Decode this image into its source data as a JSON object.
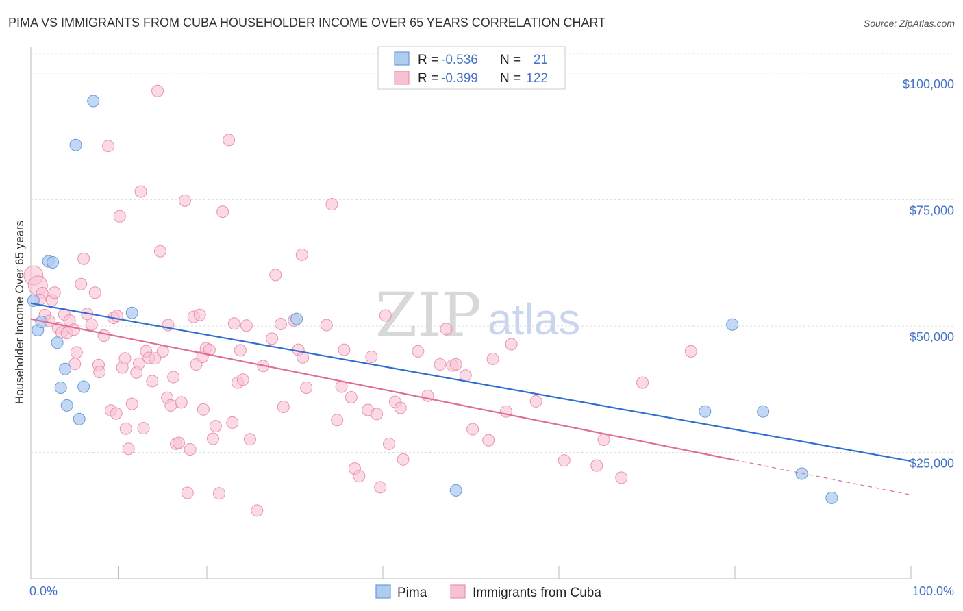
{
  "title": "PIMA VS IMMIGRANTS FROM CUBA HOUSEHOLDER INCOME OVER 65 YEARS CORRELATION CHART",
  "source": "Source: ZipAtlas.com",
  "watermark": {
    "zip": "ZIP",
    "atlas": "atlas"
  },
  "colors": {
    "pima_fill": "#aecbf0",
    "pima_stroke": "#6a9bd8",
    "pima_line": "#2f6fd0",
    "cuba_fill": "#f8c1d3",
    "cuba_stroke": "#e892b0",
    "cuba_line": "#e06d97",
    "grid": "#dddddd",
    "tick_label": "#4472c4"
  },
  "legend": {
    "rows": [
      {
        "r_label": "R =",
        "r_value": "-0.536",
        "n_label": "N =",
        "n_value": "21"
      },
      {
        "r_label": "R =",
        "r_value": "-0.399",
        "n_label": "N =",
        "n_value": "122"
      }
    ]
  },
  "bottom_legend": {
    "pima": "Pima",
    "cuba": "Immigrants from Cuba"
  },
  "chart_data": {
    "type": "scatter",
    "xlabel": "",
    "ylabel": "Householder Income Over 65 years",
    "xlim": [
      0,
      100
    ],
    "ylim": [
      0,
      105000
    ],
    "x_tick_labels": [
      "0.0%",
      "100.0%"
    ],
    "y_ticks": [
      25000,
      50000,
      75000,
      100000
    ],
    "y_tick_labels": [
      "$25,000",
      "$50,000",
      "$75,000",
      "$100,000"
    ],
    "grid": true,
    "legend_position": "top-center",
    "series": [
      {
        "name": "Pima",
        "r": -0.536,
        "n": 21,
        "trend": {
          "x": [
            0,
            100
          ],
          "y": [
            54500,
            23300
          ]
        },
        "points": [
          [
            0.3,
            55000
          ],
          [
            0.8,
            49200
          ],
          [
            1.2,
            50800
          ],
          [
            2.0,
            62800
          ],
          [
            2.5,
            62600
          ],
          [
            3.0,
            46700
          ],
          [
            3.4,
            37800
          ],
          [
            3.9,
            41500
          ],
          [
            4.1,
            34300
          ],
          [
            5.1,
            85800
          ],
          [
            5.5,
            31600
          ],
          [
            6.0,
            38000
          ],
          [
            7.1,
            94500
          ],
          [
            11.5,
            52600
          ],
          [
            30.2,
            51400
          ],
          [
            48.3,
            17500
          ],
          [
            79.7,
            50300
          ],
          [
            76.6,
            33100
          ],
          [
            83.2,
            33100
          ],
          [
            87.6,
            20800
          ],
          [
            91.0,
            16000
          ]
        ]
      },
      {
        "name": "Immigrants from Cuba",
        "r": -0.399,
        "n": 122,
        "trend": {
          "x": [
            0,
            80
          ],
          "y": [
            51400,
            23500
          ]
        },
        "trend_dashed": {
          "x": [
            80,
            100
          ],
          "y": [
            23500,
            16600
          ]
        },
        "points": [
          [
            0.3,
            60000
          ],
          [
            0.8,
            58000
          ],
          [
            1.3,
            56500
          ],
          [
            1.0,
            55200
          ],
          [
            1.6,
            52200
          ],
          [
            2.1,
            51000
          ],
          [
            2.4,
            55100
          ],
          [
            2.7,
            56600
          ],
          [
            3.1,
            49600
          ],
          [
            3.5,
            48700
          ],
          [
            3.8,
            52300
          ],
          [
            4.1,
            48600
          ],
          [
            4.4,
            51100
          ],
          [
            4.9,
            49300
          ],
          [
            5.2,
            44800
          ],
          [
            5.0,
            42500
          ],
          [
            5.7,
            58300
          ],
          [
            6.0,
            63300
          ],
          [
            6.4,
            52400
          ],
          [
            6.9,
            50300
          ],
          [
            7.3,
            56600
          ],
          [
            7.7,
            42300
          ],
          [
            7.8,
            40900
          ],
          [
            8.3,
            48100
          ],
          [
            8.8,
            85600
          ],
          [
            9.1,
            33300
          ],
          [
            9.4,
            51600
          ],
          [
            9.7,
            32700
          ],
          [
            10.1,
            71700
          ],
          [
            10.4,
            41800
          ],
          [
            10.7,
            43600
          ],
          [
            10.8,
            29700
          ],
          [
            11.1,
            25700
          ],
          [
            11.5,
            34600
          ],
          [
            12.0,
            40800
          ],
          [
            12.3,
            42600
          ],
          [
            12.5,
            76600
          ],
          [
            12.8,
            29800
          ],
          [
            13.1,
            45000
          ],
          [
            13.4,
            43700
          ],
          [
            13.8,
            39100
          ],
          [
            14.1,
            43600
          ],
          [
            14.4,
            96500
          ],
          [
            14.7,
            64800
          ],
          [
            15.0,
            45000
          ],
          [
            15.5,
            35800
          ],
          [
            15.6,
            50200
          ],
          [
            15.9,
            34300
          ],
          [
            16.2,
            39900
          ],
          [
            16.5,
            26700
          ],
          [
            16.8,
            26900
          ],
          [
            17.1,
            34900
          ],
          [
            17.5,
            74800
          ],
          [
            17.8,
            17000
          ],
          [
            18.1,
            25600
          ],
          [
            18.5,
            51800
          ],
          [
            18.8,
            42400
          ],
          [
            19.2,
            52200
          ],
          [
            19.5,
            43900
          ],
          [
            19.6,
            33500
          ],
          [
            19.9,
            45600
          ],
          [
            20.3,
            45300
          ],
          [
            20.7,
            27700
          ],
          [
            21.0,
            30200
          ],
          [
            21.4,
            16900
          ],
          [
            21.8,
            72600
          ],
          [
            22.5,
            86800
          ],
          [
            22.9,
            30900
          ],
          [
            23.1,
            50500
          ],
          [
            23.5,
            38800
          ],
          [
            23.8,
            45200
          ],
          [
            24.1,
            39400
          ],
          [
            24.5,
            50100
          ],
          [
            24.9,
            27600
          ],
          [
            25.7,
            13500
          ],
          [
            26.4,
            42100
          ],
          [
            27.4,
            47500
          ],
          [
            27.8,
            60100
          ],
          [
            28.4,
            50400
          ],
          [
            28.7,
            34000
          ],
          [
            29.9,
            51100
          ],
          [
            30.4,
            45300
          ],
          [
            30.8,
            64100
          ],
          [
            30.9,
            43800
          ],
          [
            31.3,
            37800
          ],
          [
            33.6,
            50200
          ],
          [
            34.2,
            74100
          ],
          [
            34.8,
            31400
          ],
          [
            35.3,
            38000
          ],
          [
            35.6,
            45300
          ],
          [
            36.4,
            35900
          ],
          [
            36.8,
            21800
          ],
          [
            37.3,
            20300
          ],
          [
            38.3,
            33400
          ],
          [
            38.7,
            43900
          ],
          [
            39.3,
            32600
          ],
          [
            39.7,
            18100
          ],
          [
            40.3,
            52100
          ],
          [
            40.7,
            26700
          ],
          [
            41.4,
            35000
          ],
          [
            42.0,
            33800
          ],
          [
            42.3,
            23600
          ],
          [
            44.0,
            45000
          ],
          [
            45.1,
            36200
          ],
          [
            46.5,
            42400
          ],
          [
            47.2,
            49400
          ],
          [
            47.9,
            42200
          ],
          [
            48.3,
            42400
          ],
          [
            49.4,
            40200
          ],
          [
            50.2,
            29600
          ],
          [
            52.0,
            27400
          ],
          [
            52.5,
            43500
          ],
          [
            54.0,
            33100
          ],
          [
            54.6,
            46400
          ],
          [
            57.4,
            35100
          ],
          [
            60.6,
            23400
          ],
          [
            64.3,
            22400
          ],
          [
            65.1,
            27500
          ],
          [
            67.1,
            20000
          ],
          [
            69.5,
            38800
          ],
          [
            75.0,
            45000
          ],
          [
            9.8,
            52000
          ]
        ]
      }
    ]
  }
}
